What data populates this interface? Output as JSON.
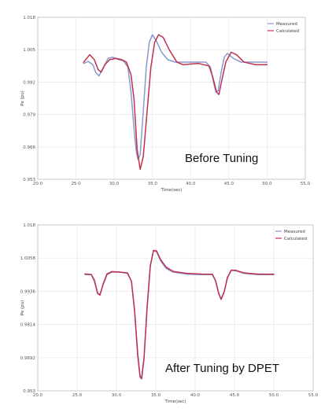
{
  "chart_data": [
    {
      "type": "line",
      "xlabel": "Time(sec)",
      "ylabel": "Pe (pu)",
      "xlim": [
        20.0,
        55.0
      ],
      "ylim": [
        0.953,
        1.018
      ],
      "xticks": [
        "20.0",
        "25.0",
        "30.0",
        "35.0",
        "40.0",
        "45.0",
        "50.0",
        "55.0"
      ],
      "yticks": [
        "1.018",
        "1.005",
        "0.992",
        "0.979",
        "0.966",
        "0.953"
      ],
      "legend_position": "top-right",
      "grid": true,
      "annotation": "Before Tuning",
      "series": [
        {
          "name": "Measured",
          "color": "#8899cc",
          "points": [
            [
              26.0,
              0.9995
            ],
            [
              26.6,
              1.0003
            ],
            [
              27.2,
              0.999
            ],
            [
              27.6,
              0.9958
            ],
            [
              28.0,
              0.9945
            ],
            [
              28.6,
              0.998
            ],
            [
              29.2,
              1.0015
            ],
            [
              29.8,
              1.002
            ],
            [
              30.6,
              1.001
            ],
            [
              31.2,
              1.0005
            ],
            [
              31.8,
              0.998
            ],
            [
              32.2,
              0.988
            ],
            [
              32.6,
              0.973
            ],
            [
              32.9,
              0.964
            ],
            [
              33.1,
              0.961
            ],
            [
              33.4,
              0.963
            ],
            [
              33.8,
              0.98
            ],
            [
              34.2,
              0.998
            ],
            [
              34.6,
              1.008
            ],
            [
              35.0,
              1.011
            ],
            [
              35.6,
              1.008
            ],
            [
              36.2,
              1.004
            ],
            [
              37.0,
              1.001
            ],
            [
              38.0,
              1.0
            ],
            [
              40.0,
              1.0
            ],
            [
              42.0,
              1.0
            ],
            [
              42.6,
              0.998
            ],
            [
              43.0,
              0.992
            ],
            [
              43.3,
              0.988
            ],
            [
              43.6,
              0.9885
            ],
            [
              44.0,
              0.996
            ],
            [
              44.4,
              1.002
            ],
            [
              44.8,
              1.0035
            ],
            [
              45.6,
              1.0015
            ],
            [
              46.6,
              1.0
            ],
            [
              50.0,
              1.0
            ]
          ]
        },
        {
          "name": "Calculated",
          "color": "#c03050",
          "points": [
            [
              26.0,
              1.0
            ],
            [
              26.8,
              1.003
            ],
            [
              27.4,
              1.001
            ],
            [
              27.9,
              0.997
            ],
            [
              28.3,
              0.996
            ],
            [
              28.8,
              0.999
            ],
            [
              29.4,
              1.001
            ],
            [
              30.2,
              1.0015
            ],
            [
              31.0,
              1.001
            ],
            [
              31.6,
              1.0
            ],
            [
              32.2,
              0.995
            ],
            [
              32.6,
              0.985
            ],
            [
              33.0,
              0.965
            ],
            [
              33.4,
              0.957
            ],
            [
              33.8,
              0.962
            ],
            [
              34.3,
              0.98
            ],
            [
              34.8,
              0.998
            ],
            [
              35.3,
              1.008
            ],
            [
              35.8,
              1.011
            ],
            [
              36.4,
              1.01
            ],
            [
              37.2,
              1.005
            ],
            [
              38.2,
              1.0
            ],
            [
              39.0,
              0.999
            ],
            [
              41.0,
              0.9995
            ],
            [
              42.4,
              0.9985
            ],
            [
              42.9,
              0.994
            ],
            [
              43.4,
              0.988
            ],
            [
              43.7,
              0.987
            ],
            [
              44.1,
              0.993
            ],
            [
              44.6,
              1.0
            ],
            [
              45.3,
              1.004
            ],
            [
              46.0,
              1.003
            ],
            [
              47.0,
              1.0
            ],
            [
              48.5,
              0.999
            ],
            [
              50.0,
              0.999
            ]
          ]
        }
      ]
    },
    {
      "type": "line",
      "xlabel": "Time(sec)",
      "ylabel": "Pe (pu)",
      "xlim": [
        20.0,
        55.0
      ],
      "ylim": [
        0.953,
        1.018
      ],
      "xticks": [
        "20.0",
        "25.0",
        "30.0",
        "35.0",
        "40.0",
        "45.0",
        "50.0",
        "55.0"
      ],
      "yticks": [
        "1.018",
        "1.0058",
        "0.9936",
        "0.9814",
        "0.9692",
        "0.953"
      ],
      "legend_position": "top-right",
      "grid": true,
      "annotation": "After Tuning by DPET",
      "series": [
        {
          "name": "Measured",
          "color": "#8899cc",
          "points": [
            [
              26.0,
              0.9985
            ],
            [
              26.8,
              0.9985
            ],
            [
              27.2,
              0.9965
            ],
            [
              27.6,
              0.9915
            ],
            [
              27.9,
              0.9905
            ],
            [
              28.3,
              0.9945
            ],
            [
              28.8,
              0.9985
            ],
            [
              29.4,
              0.9995
            ],
            [
              30.4,
              0.9995
            ],
            [
              31.4,
              0.999
            ],
            [
              31.9,
              0.996
            ],
            [
              32.3,
              0.985
            ],
            [
              32.7,
              0.968
            ],
            [
              33.0,
              0.959
            ],
            [
              33.2,
              0.958
            ],
            [
              33.5,
              0.966
            ],
            [
              33.9,
              0.986
            ],
            [
              34.3,
              1.002
            ],
            [
              34.7,
              1.0078
            ],
            [
              35.1,
              1.0075
            ],
            [
              35.6,
              1.004
            ],
            [
              36.3,
              1.001
            ],
            [
              37.2,
              0.9995
            ],
            [
              39.0,
              0.9987
            ],
            [
              41.0,
              0.9985
            ],
            [
              42.2,
              0.9985
            ],
            [
              42.6,
              0.996
            ],
            [
              43.0,
              0.991
            ],
            [
              43.3,
              0.989
            ],
            [
              43.7,
              0.992
            ],
            [
              44.1,
              0.9975
            ],
            [
              44.6,
              1.0002
            ],
            [
              45.2,
              1.0
            ],
            [
              46.2,
              0.999
            ],
            [
              48.0,
              0.9985
            ],
            [
              50.0,
              0.9985
            ]
          ]
        },
        {
          "name": "Calculated",
          "color": "#c03050",
          "points": [
            [
              26.0,
              0.9988
            ],
            [
              26.8,
              0.9986
            ],
            [
              27.2,
              0.996
            ],
            [
              27.6,
              0.9912
            ],
            [
              27.9,
              0.9905
            ],
            [
              28.3,
              0.9948
            ],
            [
              28.8,
              0.9988
            ],
            [
              29.4,
              0.9997
            ],
            [
              30.4,
              0.9995
            ],
            [
              31.4,
              0.9992
            ],
            [
              31.9,
              0.996
            ],
            [
              32.3,
              0.9845
            ],
            [
              32.7,
              0.967
            ],
            [
              33.0,
              0.9585
            ],
            [
              33.2,
              0.9577
            ],
            [
              33.5,
              0.9655
            ],
            [
              33.9,
              0.9855
            ],
            [
              34.3,
              1.0018
            ],
            [
              34.7,
              1.008
            ],
            [
              35.1,
              1.0078
            ],
            [
              35.6,
              1.0045
            ],
            [
              36.3,
              1.0015
            ],
            [
              37.2,
              0.9998
            ],
            [
              39.0,
              0.999
            ],
            [
              41.0,
              0.9987
            ],
            [
              42.2,
              0.9987
            ],
            [
              42.6,
              0.9962
            ],
            [
              43.0,
              0.9912
            ],
            [
              43.3,
              0.9888
            ],
            [
              43.7,
              0.9918
            ],
            [
              44.1,
              0.9972
            ],
            [
              44.6,
              1.0003
            ],
            [
              45.2,
              1.0002
            ],
            [
              46.2,
              0.9992
            ],
            [
              48.0,
              0.9987
            ],
            [
              50.0,
              0.9987
            ]
          ]
        }
      ]
    }
  ]
}
